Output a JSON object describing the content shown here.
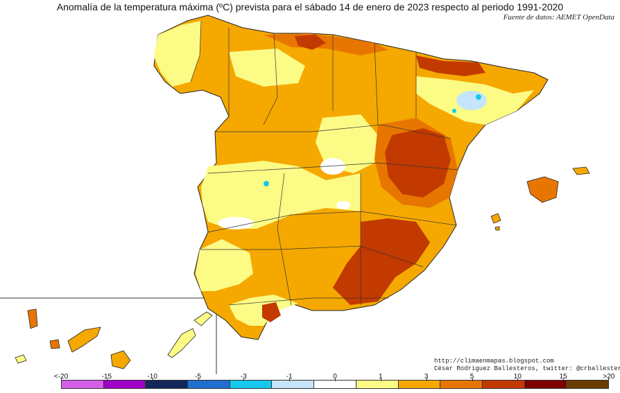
{
  "title": "Anomalía de la temperatura máxima (ºC) prevista para el sábado 14 de enero de 2023 respecto al periodo 1991-2020",
  "source": "Fuente de datos: AEMET OpenData",
  "credits": {
    "blog": "http://climaenmapas.blogspot.com",
    "author": "César Rodríguez Ballesteros, twitter: @crballesteros"
  },
  "legend": {
    "ticks": [
      "<-20",
      "-15",
      "-10",
      "-5",
      "-3",
      "-1",
      "0",
      "1",
      "3",
      "5",
      "10",
      "15",
      ">20"
    ],
    "colors": [
      "#d45ee8",
      "#a000c8",
      "#12285a",
      "#1f6fd1",
      "#16c7ee",
      "#c6e4fb",
      "#ffffff",
      "#fbfb86",
      "#f5a800",
      "#e77600",
      "#c23a00",
      "#800000",
      "#6b3c00"
    ]
  },
  "palette": {
    "mild_yellow": "#fbfb86",
    "orange": "#f5a800",
    "dark_orange": "#e77600",
    "red": "#c23a00",
    "cool_light": "#c6e4fb",
    "cyan": "#16c7ee",
    "white": "#ffffff"
  }
}
